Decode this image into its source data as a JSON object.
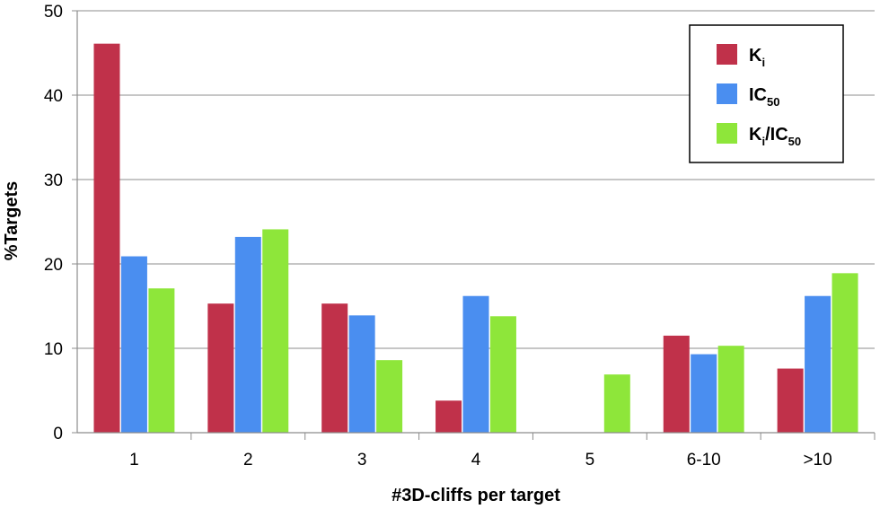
{
  "chart_data": {
    "type": "bar",
    "title": "",
    "xlabel": "#3D-cliffs per target",
    "ylabel": "%Targets",
    "ylim": [
      0,
      50
    ],
    "yticks": [
      0,
      10,
      20,
      30,
      40,
      50
    ],
    "grid": true,
    "legend_position": "top-right",
    "categories": [
      "1",
      "2",
      "3",
      "4",
      "5",
      "6-10",
      ">10"
    ],
    "series": [
      {
        "name": "Ki",
        "name_main": "K",
        "name_sub": "i",
        "color": "#c0314a",
        "values": [
          46.1,
          15.3,
          15.3,
          3.8,
          0,
          11.5,
          7.6
        ]
      },
      {
        "name": "IC50",
        "name_main": "IC",
        "name_sub": "50",
        "color": "#4a8ef0",
        "values": [
          20.9,
          23.2,
          13.9,
          16.2,
          0,
          9.3,
          16.2
        ]
      },
      {
        "name": "Ki/IC50",
        "name_main": "K",
        "name_sub": "i",
        "name_main2": "/IC",
        "name_sub2": "50",
        "color": "#8ee63a",
        "values": [
          17.1,
          24.1,
          8.6,
          13.8,
          6.9,
          10.3,
          18.9
        ]
      }
    ]
  }
}
